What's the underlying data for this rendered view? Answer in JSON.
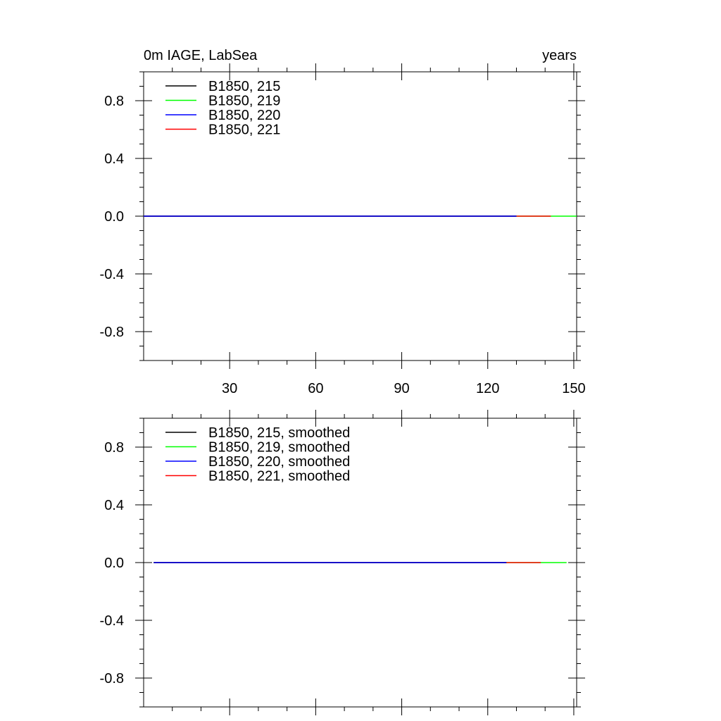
{
  "chart_data": [
    {
      "type": "line",
      "title": "0m IAGE, LabSea",
      "title_right": "years",
      "xlim": [
        0,
        151
      ],
      "ylim": [
        -1.0,
        1.0
      ],
      "xticks": [
        30,
        60,
        90,
        120,
        150
      ],
      "xtick_labels": [
        "30",
        "60",
        "90",
        "120",
        "150"
      ],
      "x_minor_step": 10,
      "yticks": [
        -0.8,
        -0.4,
        0.0,
        0.4,
        0.8
      ],
      "ytick_labels": [
        "-0.8",
        "-0.4",
        "0.0",
        "0.4",
        "0.8"
      ],
      "y_minor_step": 0.1,
      "legend_position": "top-left",
      "series": [
        {
          "name": "B1850, 215",
          "color": "#000000",
          "x": [
            0,
            130
          ],
          "values": [
            0,
            0
          ]
        },
        {
          "name": "B1850, 219",
          "color": "#00ff00",
          "x": [
            0,
            151
          ],
          "values": [
            0,
            0
          ]
        },
        {
          "name": "B1850, 220",
          "color": "#0000ff",
          "x": [
            0,
            130
          ],
          "values": [
            0,
            0
          ]
        },
        {
          "name": "B1850, 221",
          "color": "#ff0000",
          "x": [
            0,
            142
          ],
          "values": [
            0,
            0
          ]
        }
      ]
    },
    {
      "type": "line",
      "title": "",
      "xlim": [
        0,
        151
      ],
      "ylim": [
        -1.0,
        1.0
      ],
      "xticks": [
        30,
        60,
        90,
        120,
        150
      ],
      "xtick_labels": [],
      "x_minor_step": 10,
      "yticks": [
        -0.8,
        -0.4,
        0.0,
        0.4,
        0.8
      ],
      "ytick_labels": [
        "-0.8",
        "-0.4",
        "0.0",
        "0.4",
        "0.8"
      ],
      "y_minor_step": 0.1,
      "legend_position": "top-left",
      "series": [
        {
          "name": "B1850, 215, smoothed",
          "color": "#000000",
          "x": [
            3.5,
            126.5
          ],
          "values": [
            0,
            0
          ]
        },
        {
          "name": "B1850, 219, smoothed",
          "color": "#00ff00",
          "x": [
            3.5,
            147.5
          ],
          "values": [
            0,
            0
          ]
        },
        {
          "name": "B1850, 220, smoothed",
          "color": "#0000ff",
          "x": [
            3.5,
            126.5
          ],
          "values": [
            0,
            0
          ]
        },
        {
          "name": "B1850, 221, smoothed",
          "color": "#ff0000",
          "x": [
            3.5,
            138.5
          ],
          "values": [
            0,
            0
          ]
        }
      ]
    }
  ]
}
